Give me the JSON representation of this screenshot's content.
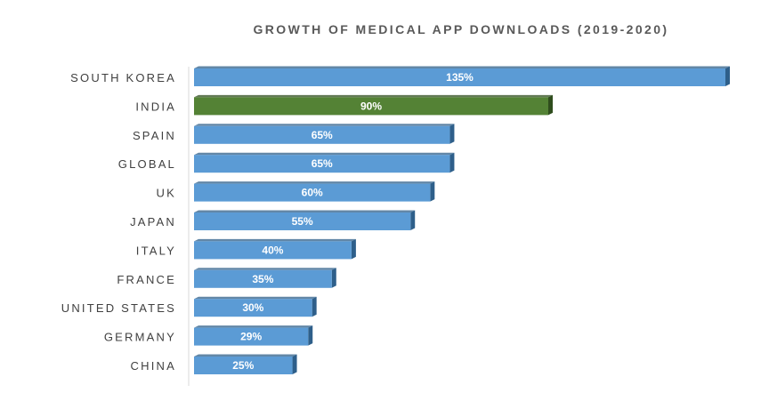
{
  "chart_data": {
    "type": "bar",
    "orientation": "horizontal",
    "title": "GROWTH OF MEDICAL APP DOWNLOADS (2019-2020)",
    "categories": [
      "SOUTH KOREA",
      "INDIA",
      "SPAIN",
      "GLOBAL",
      "UK",
      "JAPAN",
      "ITALY",
      "FRANCE",
      "UNITED STATES",
      "GERMANY",
      "CHINA"
    ],
    "values": [
      135,
      90,
      65,
      65,
      60,
      55,
      40,
      35,
      30,
      29,
      25
    ],
    "labels": [
      "135%",
      "90%",
      "65%",
      "65%",
      "60%",
      "55%",
      "40%",
      "35%",
      "30%",
      "29%",
      "25%"
    ],
    "unit": "%",
    "highlight_index": 1,
    "xlim": [
      0,
      135
    ],
    "grid": false,
    "legend": "none",
    "colors": {
      "bar": "#5b9bd5",
      "bar_side": "#2e5f8a",
      "highlight": "#548235",
      "highlight_side": "#2f4d1d",
      "axis": "#d9d9d9"
    }
  }
}
